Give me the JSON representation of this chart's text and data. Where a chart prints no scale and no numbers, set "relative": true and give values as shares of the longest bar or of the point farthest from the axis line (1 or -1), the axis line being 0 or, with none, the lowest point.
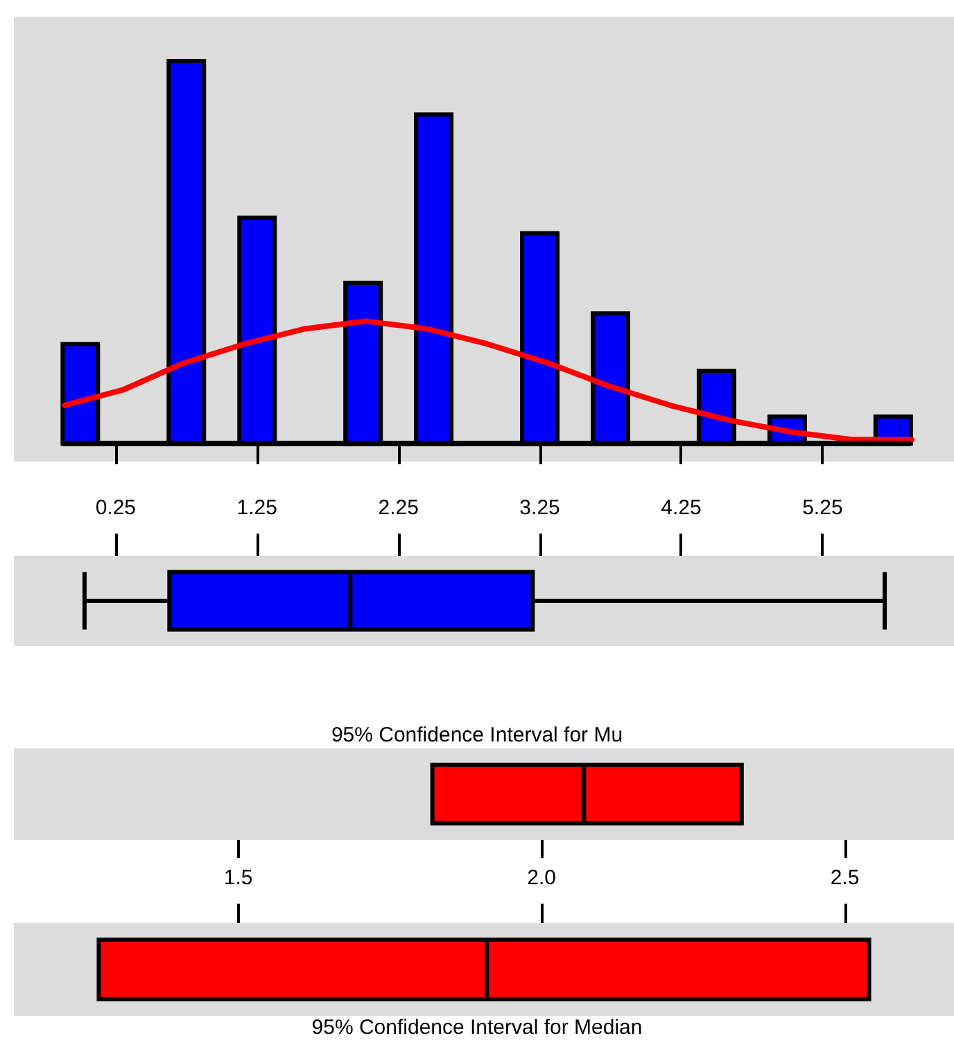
{
  "chart_data": [
    {
      "type": "histogram",
      "relative": true,
      "xlim": [
        -0.47,
        6.18
      ],
      "xticks": [
        0.25,
        1.25,
        2.25,
        3.25,
        4.25,
        5.25
      ],
      "tick_labels": "x",
      "color": "#0000ff",
      "bins": [
        -0.125,
        0.125,
        0.375,
        0.625,
        0.875,
        1.125,
        1.375,
        1.625,
        1.875,
        2.125,
        2.375,
        2.625,
        2.875,
        3.125,
        3.375,
        3.625,
        3.875,
        4.125,
        4.375,
        4.625,
        4.875,
        5.125,
        5.375,
        5.625,
        5.875
      ],
      "values": [
        0.26,
        0,
        0,
        1,
        0,
        0.59,
        0,
        0,
        0.42,
        0,
        0.86,
        0,
        0,
        0.55,
        0,
        0.34,
        0,
        0,
        0.19,
        0,
        0.07,
        0,
        0,
        0.07
      ],
      "series": [
        {
          "type": "line",
          "color": "#ff0000",
          "x": [
            -0.11,
            0.3,
            0.73,
            1.16,
            1.59,
            2.02,
            2.45,
            2.88,
            3.31,
            3.74,
            4.17,
            4.6,
            5.03,
            5.46,
            5.88
          ],
          "values": [
            0.1,
            0.14,
            0.21,
            0.26,
            0.3,
            0.32,
            0.3,
            0.26,
            0.21,
            0.15,
            0.1,
            0.06,
            0.03,
            0.01,
            0.01
          ]
        }
      ]
    },
    {
      "type": "box",
      "orientation": "horizontal",
      "categories": [
        null
      ],
      "color": "#0000ff",
      "boxes": [
        {
          "low": 0.03,
          "q1": 0.63,
          "median": 1.91,
          "q3": 3.2,
          "high": 5.69
        }
      ],
      "xlim": [
        -0.47,
        6.18
      ],
      "xticks": [
        0.25,
        1.25,
        2.25,
        3.25,
        4.25,
        5.25
      ],
      "tick_labels": false
    },
    {
      "type": "box",
      "orientation": "horizontal",
      "title": "95% Confidence Interval for Mu",
      "categories": [
        null
      ],
      "color": "#ff0000",
      "boxes": [
        {
          "low": 1.82,
          "q1": 1.82,
          "median": 2.07,
          "q3": 2.33,
          "high": 2.33
        }
      ],
      "xlim": [
        1.13,
        2.68
      ],
      "xticks": [
        {
          "value": 1.5,
          "label": "1.5"
        },
        {
          "value": 2,
          "label": "2.0"
        },
        {
          "value": 2.5,
          "label": "2.5"
        }
      ],
      "tick_labels": "x"
    },
    {
      "type": "box",
      "orientation": "horizontal",
      "xlabel": "95% Confidence Interval for Median",
      "categories": [
        null
      ],
      "color": "#ff0000",
      "boxes": [
        {
          "low": 1.27,
          "q1": 1.27,
          "median": 1.91,
          "q3": 2.54,
          "high": 2.54
        }
      ],
      "xlim": [
        1.13,
        2.68
      ],
      "xticks": [
        1.5,
        2,
        2.5
      ],
      "tick_labels": false
    }
  ]
}
